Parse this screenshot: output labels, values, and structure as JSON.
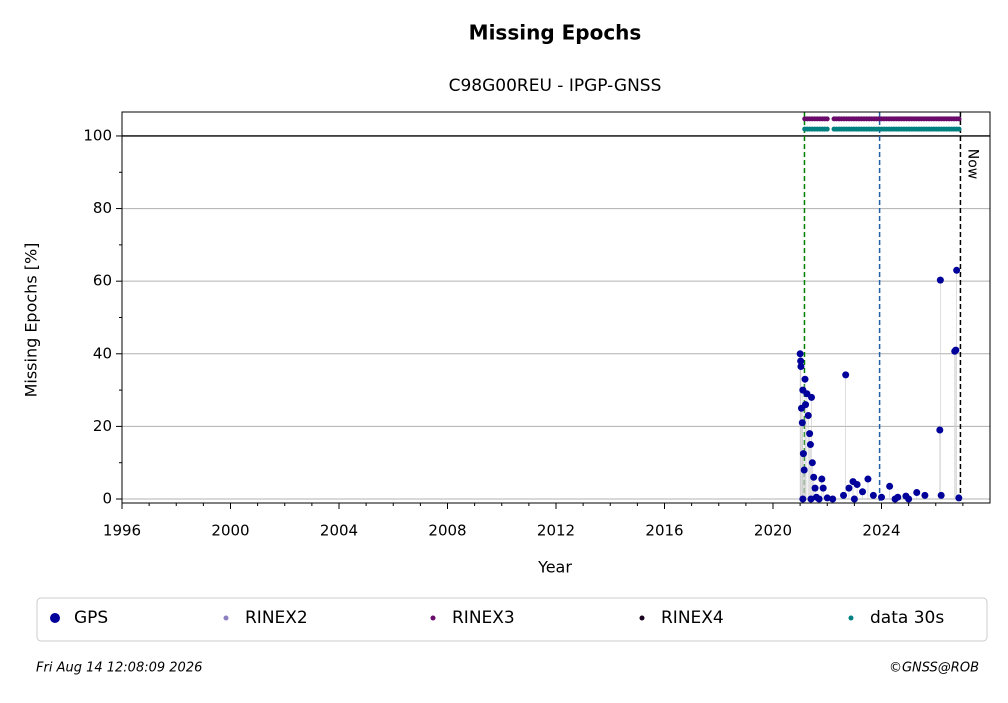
{
  "chart_data": {
    "type": "scatter",
    "title": "Missing Epochs",
    "subtitle": "C98G00REU - IPGP-GNSS",
    "x_label": "Year",
    "y_label": "Missing Epochs [%]",
    "xlim": [
      1996,
      2028
    ],
    "ylim": [
      -1.1,
      106.6
    ],
    "xticks": [
      1996,
      2000,
      2004,
      2008,
      2012,
      2016,
      2020,
      2024
    ],
    "xminorticks": [
      1997,
      1998,
      1999,
      2001,
      2002,
      2003,
      2005,
      2006,
      2007,
      2009,
      2010,
      2011,
      2013,
      2014,
      2015,
      2017,
      2018,
      2019,
      2021,
      2022,
      2023,
      2025,
      2026,
      2027
    ],
    "yticks": [
      0,
      20,
      40,
      60,
      80,
      100
    ],
    "yminorticks": [
      10,
      30,
      50,
      70,
      90
    ],
    "grid": true,
    "hline": 100,
    "vlines": [
      {
        "x": 2021.16,
        "color": "#008000"
      },
      {
        "x": 2023.93,
        "color": "#1f5fa8"
      },
      {
        "x": 2026.91,
        "color": "#000000",
        "label": "Now"
      }
    ],
    "series": [
      {
        "name": "GPS",
        "color": "#00009a",
        "style": "points",
        "marker_size": 3.5,
        "x": [
          2021.0,
          2021.02,
          2021.03,
          2021.05,
          2021.08,
          2021.1,
          2021.12,
          2021.15,
          2021.18,
          2021.2,
          2021.25,
          2021.3,
          2021.35,
          2021.38,
          2021.42,
          2021.45,
          2021.5,
          2021.55,
          2021.6,
          2021.8,
          2021.85,
          2022.0,
          2022.68,
          2022.6,
          2022.8,
          2022.95,
          2023.1,
          2023.3,
          2023.5,
          2023.7,
          2024.0,
          2024.3,
          2024.6,
          2024.9,
          2025.3,
          2025.6,
          2026.17,
          2026.15,
          2026.2,
          2026.77,
          2026.7,
          2026.74,
          2026.85,
          2021.1,
          2021.4,
          2021.7,
          2022.2,
          2023.0,
          2024.5,
          2025.0
        ],
        "values": [
          40,
          38,
          36.5,
          25,
          21,
          30,
          12.5,
          8,
          33,
          26,
          29,
          23,
          18,
          15,
          28,
          10,
          6,
          3,
          0.5,
          5.5,
          3,
          0.3,
          34.2,
          1,
          3,
          4.8,
          4,
          2,
          5.5,
          1,
          0.5,
          3.5,
          0.5,
          0.8,
          1.8,
          1,
          60.3,
          19,
          1,
          63,
          40.7,
          41,
          0.3,
          0,
          0,
          0,
          0,
          0,
          0,
          0
        ]
      },
      {
        "name": "RINEX2",
        "color": "#8c7fbf",
        "style": "points",
        "marker_size": 2,
        "x": [],
        "values": []
      },
      {
        "name": "RINEX3",
        "color": "#6a0a6a",
        "style": "line",
        "marker_size": 2,
        "x": [
          2021.17,
          2022.0,
          2022.1,
          2022.25,
          2026.9
        ],
        "values": [
          104.7,
          104.7,
          null,
          104.7,
          104.7
        ]
      },
      {
        "name": "RINEX4",
        "color": "#1a0020",
        "style": "points",
        "marker_size": 2,
        "x": [],
        "values": []
      },
      {
        "name": "data 30s",
        "color": "#008080",
        "style": "line",
        "marker_size": 2,
        "x": [
          2021.17,
          2022.0,
          2022.1,
          2022.25,
          2026.9
        ],
        "values": [
          101.9,
          101.9,
          null,
          101.9,
          101.9
        ]
      }
    ]
  },
  "footer": {
    "timestamp": "Fri Aug 14 12:08:09 2026",
    "credit": "©GNSS@ROB"
  }
}
